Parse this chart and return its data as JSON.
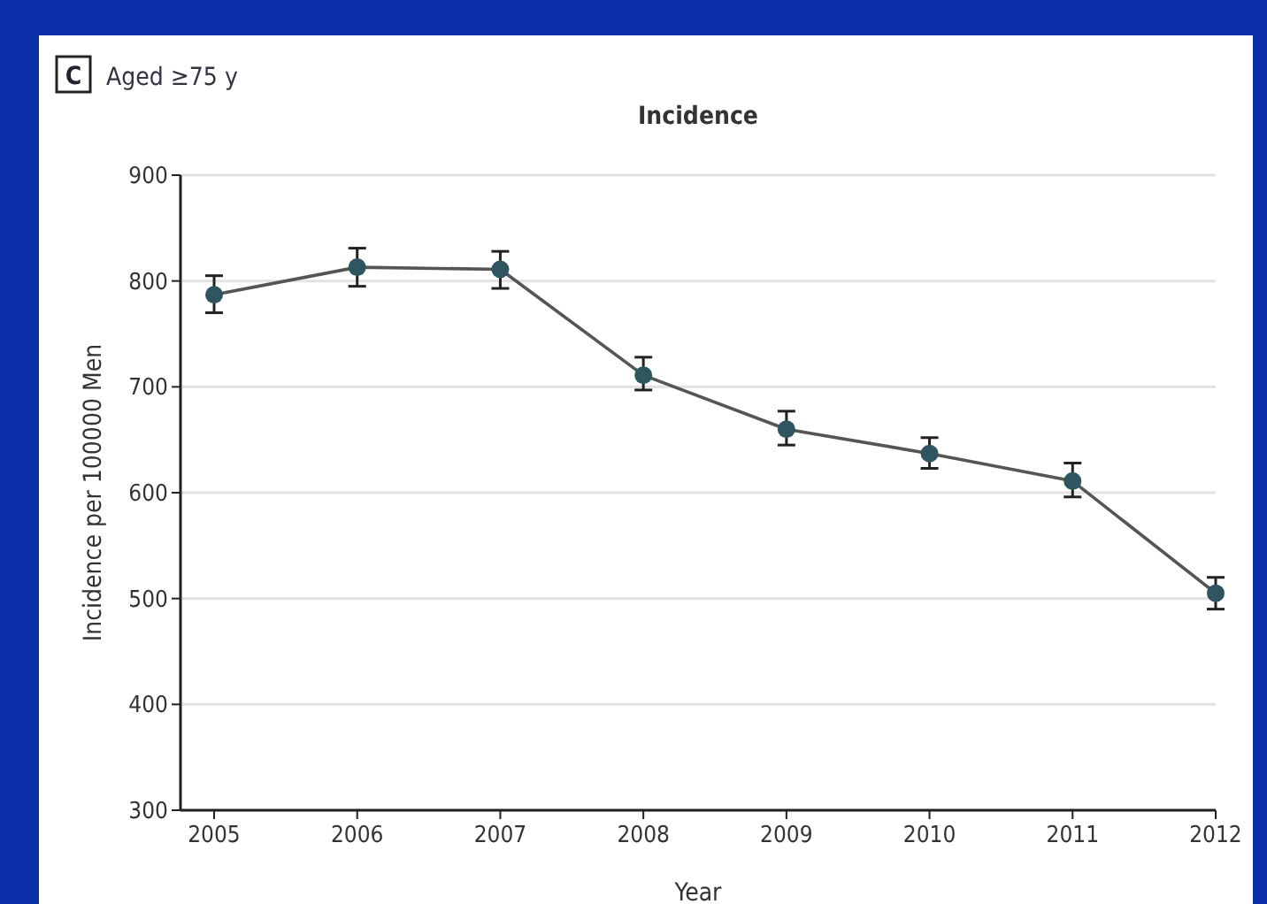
{
  "chart_data": {
    "type": "line",
    "title": "Aged ≥75 y",
    "subtitle": "Incidence",
    "annotations": [
      "C"
    ],
    "xlabel": "Year",
    "ylabel": "Incidence per 100000 Men",
    "categories": [
      "2005",
      "2006",
      "2007",
      "2008",
      "2009",
      "2010",
      "2011",
      "2012"
    ],
    "series": [
      {
        "color": "#2e5560",
        "values": [
          787,
          813,
          811,
          711,
          660,
          637,
          611,
          505
        ],
        "errors": [
          [
            770,
            805
          ],
          [
            795,
            831
          ],
          [
            793,
            828
          ],
          [
            697,
            728
          ],
          [
            645,
            677
          ],
          [
            623,
            652
          ],
          [
            596,
            628
          ],
          [
            490,
            520
          ]
        ]
      }
    ],
    "ylim": [
      300,
      900
    ],
    "yticks": [
      300,
      400,
      500,
      600,
      700,
      800,
      900
    ],
    "grid": "y",
    "marker": "circle",
    "line_style": "solid"
  }
}
